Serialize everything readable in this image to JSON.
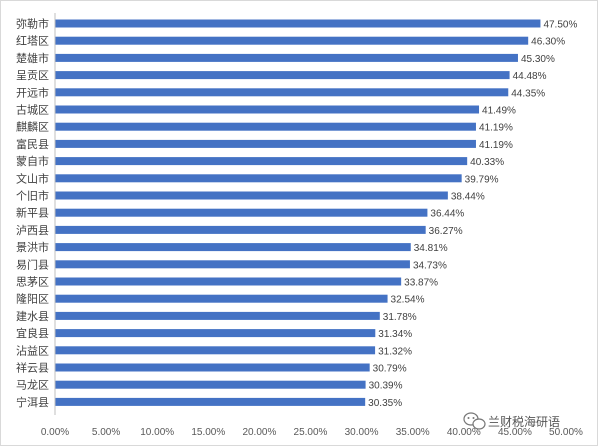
{
  "chart_data": {
    "type": "bar",
    "orientation": "horizontal",
    "categories": [
      "弥勒市",
      "红塔区",
      "楚雄市",
      "呈贡区",
      "开远市",
      "古城区",
      "麒麟区",
      "富民县",
      "蒙自市",
      "文山市",
      "个旧市",
      "新平县",
      "泸西县",
      "景洪市",
      "易门县",
      "思茅区",
      "隆阳区",
      "建水县",
      "宜良县",
      "沾益区",
      "祥云县",
      "马龙区",
      "宁洱县"
    ],
    "values": [
      47.5,
      46.3,
      45.3,
      44.48,
      44.35,
      41.49,
      41.19,
      41.19,
      40.33,
      39.79,
      38.44,
      36.44,
      36.27,
      34.81,
      34.73,
      33.87,
      32.54,
      31.78,
      31.34,
      31.32,
      30.79,
      30.39,
      30.35
    ],
    "value_labels": [
      "47.50%",
      "46.30%",
      "45.30%",
      "44.48%",
      "44.35%",
      "41.49%",
      "41.19%",
      "41.19%",
      "40.33%",
      "39.79%",
      "38.44%",
      "36.44%",
      "36.27%",
      "34.81%",
      "34.73%",
      "33.87%",
      "32.54%",
      "31.78%",
      "31.34%",
      "31.32%",
      "30.79%",
      "30.39%",
      "30.35%"
    ],
    "x_ticks": [
      "0.00%",
      "5.00%",
      "10.00%",
      "15.00%",
      "20.00%",
      "25.00%",
      "30.00%",
      "35.00%",
      "40.00%",
      "45.00%",
      "50.00%"
    ],
    "xlim": [
      0,
      50
    ],
    "bar_color": "#4472c4",
    "grid": false,
    "legend": "none"
  },
  "watermark": {
    "text": "兰财税海研语",
    "icon": "wechat-icon"
  }
}
